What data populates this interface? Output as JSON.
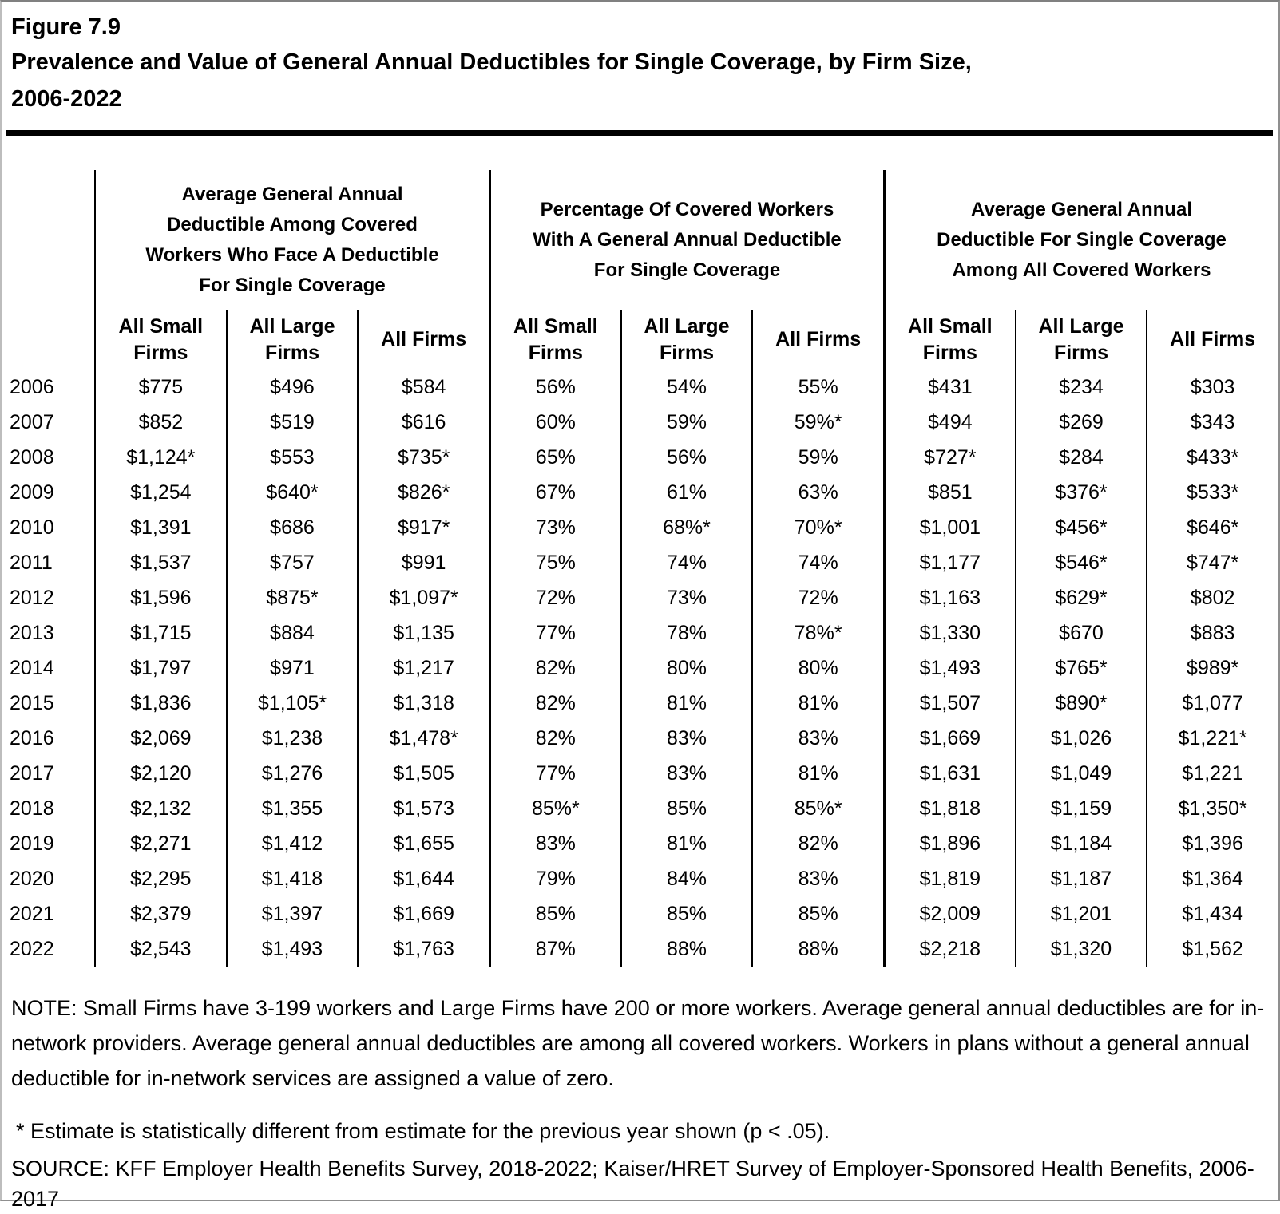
{
  "figure": {
    "label": "Figure 7.9",
    "title_lines": [
      "Prevalence and Value of General Annual Deductibles for Single Coverage, by Firm Size,",
      "2006-2022"
    ]
  },
  "table": {
    "groups": [
      {
        "title_lines": [
          "Average General Annual",
          "Deductible Among Covered",
          "Workers Who Face A Deductible",
          "For Single Coverage"
        ]
      },
      {
        "title_lines": [
          "Percentage Of Covered Workers",
          "With A General Annual Deductible",
          "For Single Coverage"
        ]
      },
      {
        "title_lines": [
          "Average General Annual",
          "Deductible For Single Coverage",
          "Among All Covered Workers"
        ]
      }
    ],
    "subheaders": [
      "All Small Firms",
      "All Large Firms",
      "All Firms",
      "All Small Firms",
      "All Large Firms",
      "All Firms",
      "All Small Firms",
      "All Large Firms",
      "All Firms"
    ],
    "rows": [
      {
        "year": "2006",
        "values": [
          "$775",
          "$496",
          "$584",
          "56%",
          "54%",
          "55%",
          "$431",
          "$234",
          "$303"
        ]
      },
      {
        "year": "2007",
        "values": [
          "$852",
          "$519",
          "$616",
          "60%",
          "59%",
          "59%*",
          "$494",
          "$269",
          "$343"
        ]
      },
      {
        "year": "2008",
        "values": [
          "$1,124*",
          "$553",
          "$735*",
          "65%",
          "56%",
          "59%",
          "$727*",
          "$284",
          "$433*"
        ]
      },
      {
        "year": "2009",
        "values": [
          "$1,254",
          "$640*",
          "$826*",
          "67%",
          "61%",
          "63%",
          "$851",
          "$376*",
          "$533*"
        ]
      },
      {
        "year": "2010",
        "values": [
          "$1,391",
          "$686",
          "$917*",
          "73%",
          "68%*",
          "70%*",
          "$1,001",
          "$456*",
          "$646*"
        ]
      },
      {
        "year": "2011",
        "values": [
          "$1,537",
          "$757",
          "$991",
          "75%",
          "74%",
          "74%",
          "$1,177",
          "$546*",
          "$747*"
        ]
      },
      {
        "year": "2012",
        "values": [
          "$1,596",
          "$875*",
          "$1,097*",
          "72%",
          "73%",
          "72%",
          "$1,163",
          "$629*",
          "$802"
        ]
      },
      {
        "year": "2013",
        "values": [
          "$1,715",
          "$884",
          "$1,135",
          "77%",
          "78%",
          "78%*",
          "$1,330",
          "$670",
          "$883"
        ]
      },
      {
        "year": "2014",
        "values": [
          "$1,797",
          "$971",
          "$1,217",
          "82%",
          "80%",
          "80%",
          "$1,493",
          "$765*",
          "$989*"
        ]
      },
      {
        "year": "2015",
        "values": [
          "$1,836",
          "$1,105*",
          "$1,318",
          "82%",
          "81%",
          "81%",
          "$1,507",
          "$890*",
          "$1,077"
        ]
      },
      {
        "year": "2016",
        "values": [
          "$2,069",
          "$1,238",
          "$1,478*",
          "82%",
          "83%",
          "83%",
          "$1,669",
          "$1,026",
          "$1,221*"
        ]
      },
      {
        "year": "2017",
        "values": [
          "$2,120",
          "$1,276",
          "$1,505",
          "77%",
          "83%",
          "81%",
          "$1,631",
          "$1,049",
          "$1,221"
        ]
      },
      {
        "year": "2018",
        "values": [
          "$2,132",
          "$1,355",
          "$1,573",
          "85%*",
          "85%",
          "85%*",
          "$1,818",
          "$1,159",
          "$1,350*"
        ]
      },
      {
        "year": "2019",
        "values": [
          "$2,271",
          "$1,412",
          "$1,655",
          "83%",
          "81%",
          "82%",
          "$1,896",
          "$1,184",
          "$1,396"
        ]
      },
      {
        "year": "2020",
        "values": [
          "$2,295",
          "$1,418",
          "$1,644",
          "79%",
          "84%",
          "83%",
          "$1,819",
          "$1,187",
          "$1,364"
        ]
      },
      {
        "year": "2021",
        "values": [
          "$2,379",
          "$1,397",
          "$1,669",
          "85%",
          "85%",
          "85%",
          "$2,009",
          "$1,201",
          "$1,434"
        ]
      },
      {
        "year": "2022",
        "values": [
          "$2,543",
          "$1,493",
          "$1,763",
          "87%",
          "88%",
          "88%",
          "$2,218",
          "$1,320",
          "$1,562"
        ]
      }
    ]
  },
  "notes": {
    "note": "NOTE: Small Firms have 3-199 workers and Large Firms have 200 or more workers. Average general annual deductibles are for in-network providers. Average general annual deductibles are among all covered workers. Workers in plans without a general annual deductible for in-network services are assigned a value of zero.",
    "footnote": "* Estimate is statistically different from estimate for the previous year shown (p < .05).",
    "source": "SOURCE: KFF Employer Health Benefits Survey, 2018-2022; Kaiser/HRET Survey of Employer-Sponsored Health Benefits, 2006-2017"
  },
  "colors": {
    "table_border": "#000000",
    "page_frame": "#808080",
    "text": "#000000",
    "background": "#ffffff"
  }
}
